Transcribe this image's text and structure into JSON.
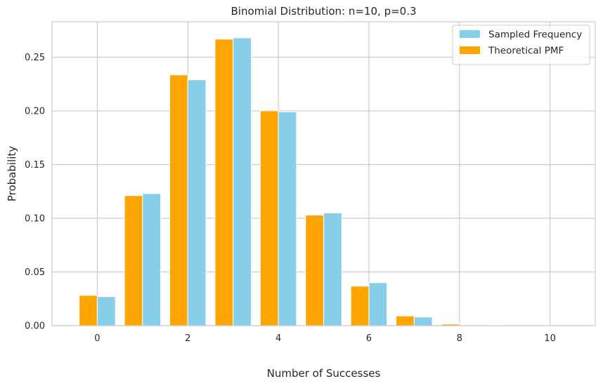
{
  "chart_data": {
    "type": "bar",
    "title": "Binomial Distribution: n=10, p=0.3",
    "xlabel": "Number of Successes",
    "ylabel": "Probability",
    "x": [
      0,
      1,
      2,
      3,
      4,
      5,
      6,
      7,
      8,
      9,
      10
    ],
    "xticks": [
      0,
      2,
      4,
      6,
      8,
      10
    ],
    "yticks": [
      0.0,
      0.05,
      0.1,
      0.15,
      0.2,
      0.25
    ],
    "ytick_labels": [
      "0.00",
      "0.05",
      "0.10",
      "0.15",
      "0.20",
      "0.25"
    ],
    "xlim": [
      -1,
      11
    ],
    "ylim": [
      0,
      0.283
    ],
    "grid": true,
    "legend_position": "top-right",
    "series": [
      {
        "name": "Sampled Frequency",
        "color": "#87CEEB",
        "values": [
          0.027,
          0.123,
          0.229,
          0.268,
          0.199,
          0.105,
          0.04,
          0.008,
          0.0,
          0.0,
          0.0
        ]
      },
      {
        "name": "Theoretical PMF",
        "color": "#FFA500",
        "values": [
          0.0282,
          0.1211,
          0.2335,
          0.2668,
          0.2001,
          0.1029,
          0.0368,
          0.009,
          0.0014,
          0.0001,
          0.0
        ]
      }
    ]
  }
}
